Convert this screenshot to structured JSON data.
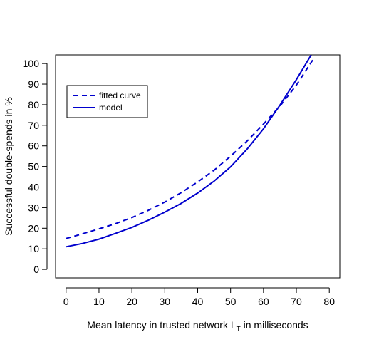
{
  "chart_data": {
    "type": "line",
    "title": "",
    "xlabel": {
      "main": "Mean latency in trusted network L",
      "sub": "T",
      "suffix": " in milliseconds"
    },
    "ylabel": "Successful double-spends in %",
    "xlim": [
      -3.2,
      83.2
    ],
    "ylim": [
      -4.12,
      104.2
    ],
    "xticks": [
      0,
      10,
      20,
      30,
      40,
      50,
      60,
      70,
      80
    ],
    "yticks": [
      0,
      10,
      20,
      30,
      40,
      50,
      60,
      70,
      80,
      90,
      100
    ],
    "grid": false,
    "legend_position": "top-left",
    "series": [
      {
        "name": "fitted curve",
        "style": "dashed",
        "color": "#0000CD",
        "x": [
          0,
          5,
          10,
          15,
          20,
          25,
          30,
          35,
          40,
          45,
          50,
          55,
          60,
          65,
          70,
          75
        ],
        "y": [
          15,
          17.3,
          19.7,
          22.2,
          25.2,
          28.7,
          32.7,
          37.3,
          42.5,
          48.2,
          55,
          62.3,
          70.6,
          79.3,
          89.5,
          101.8
        ]
      },
      {
        "name": "model",
        "style": "solid",
        "color": "#0000CD",
        "x": [
          0,
          5,
          10,
          15,
          20,
          25,
          30,
          35,
          40,
          45,
          50,
          55,
          60,
          65,
          70,
          74.5
        ],
        "y": [
          11,
          12.6,
          14.7,
          17.5,
          20.4,
          23.9,
          27.8,
          32.1,
          37.1,
          42.9,
          49.8,
          58.4,
          68.3,
          79.8,
          92.2,
          104.2
        ]
      }
    ]
  }
}
